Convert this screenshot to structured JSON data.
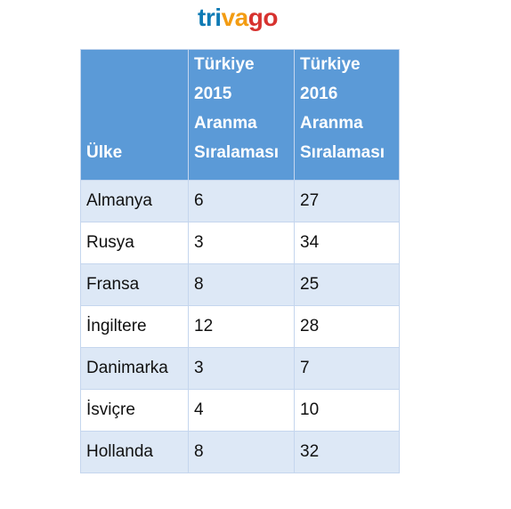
{
  "logo": "trivago",
  "table": {
    "header": [
      "Ülke",
      "Türkiye 2015 Aranma Sıralaması",
      "Türkiye 2016 Aranma Sıralaması"
    ],
    "rows": [
      [
        "Almanya",
        "6",
        "27"
      ],
      [
        "Rusya",
        "3",
        "34"
      ],
      [
        "Fransa",
        "8",
        "25"
      ],
      [
        "İngiltere",
        "12",
        "28"
      ],
      [
        "Danimarka",
        "3",
        "7"
      ],
      [
        "İsviçre",
        "4",
        "10"
      ],
      [
        "Hollanda",
        "8",
        "32"
      ]
    ]
  }
}
